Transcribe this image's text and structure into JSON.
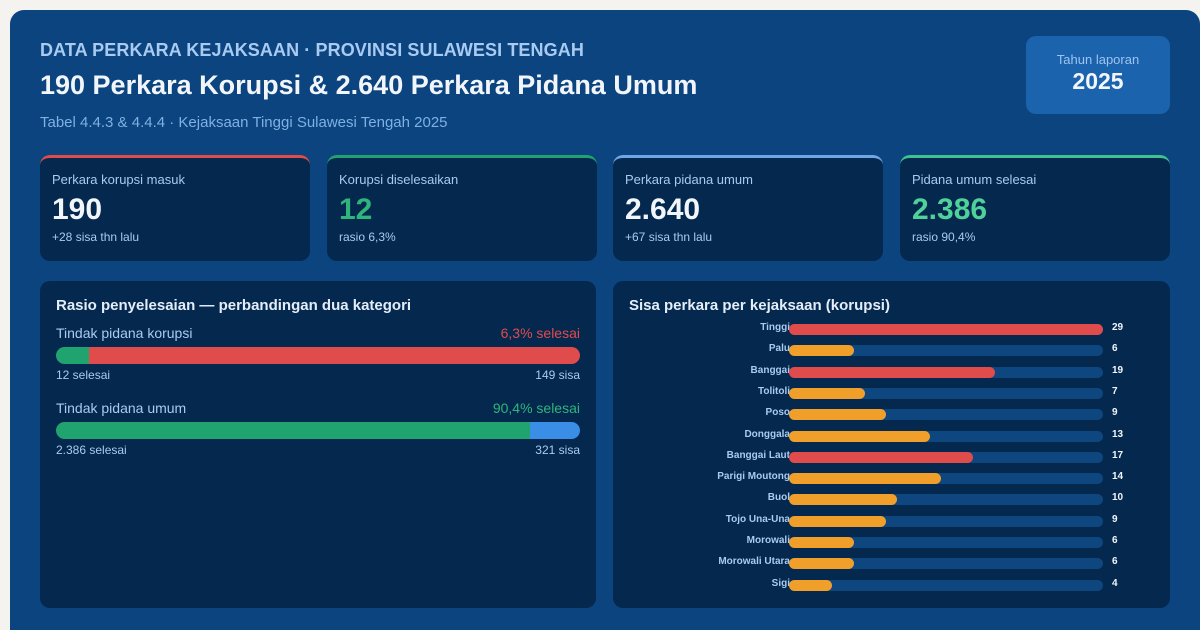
{
  "header": {
    "eyebrow": "DATA PERKARA KEJAKSAAN · PROVINSI SULAWESI TENGAH",
    "headline": "190 Perkara Korupsi & 2.640 Perkara Pidana Umum",
    "subtitle": "Tabel 4.4.3 & 4.4.4 · Kejaksaan Tinggi Sulawesi Tengah 2025",
    "year_badge": {
      "label": "Tahun laporan",
      "value": "2025"
    }
  },
  "kpis": [
    {
      "label": "Perkara korupsi masuk",
      "value": "190",
      "note": "+28 sisa thn lalu",
      "accent": "#e04b4b",
      "value_color": "#f2f6fb"
    },
    {
      "label": "Korupsi diselesaikan",
      "value": "12",
      "note": "rasio 6,3%",
      "accent": "#21a36f",
      "value_color": "#2fb57c"
    },
    {
      "label": "Perkara pidana umum",
      "value": "2.640",
      "note": "+67 sisa thn lalu",
      "accent": "#6ea6e6",
      "value_color": "#f2f6fb"
    },
    {
      "label": "Pidana umum selesai",
      "value": "2.386",
      "note": "rasio 90,4%",
      "accent": "#3fc38e",
      "value_color": "#4fd19a"
    }
  ],
  "ratio_panel": {
    "title": "Rasio penyelesaian — perbandingan dua kategori",
    "rows": [
      {
        "name": "Tindak pidana korupsi",
        "pct_label": "6,3% selesai",
        "pct_color": "#e04b4b",
        "done_label": "12 selesai",
        "left_label": "149 sisa",
        "done_pct": 6.3,
        "done_color": "#21a36f",
        "left_color": "#e04b4b"
      },
      {
        "name": "Tindak pidana umum",
        "pct_label": "90,4% selesai",
        "pct_color": "#2fb57c",
        "done_label": "2.386 selesai",
        "left_label": "321 sisa",
        "done_pct": 90.4,
        "done_color": "#21a36f",
        "left_color": "#3a8ee6"
      }
    ]
  },
  "bars_panel": {
    "title": "Sisa perkara per kejaksaan (korupsi)"
  },
  "colors": {
    "high": "#e04b4b",
    "normal": "#f0a02a",
    "track": "#0e4680"
  },
  "chart_data": [
    {
      "type": "bar",
      "orientation": "horizontal",
      "title": "Sisa perkara per kejaksaan (korupsi)",
      "categories": [
        "Tinggi",
        "Palu",
        "Banggai",
        "Tolitoli",
        "Poso",
        "Donggala",
        "Banggai Laut",
        "Parigi Moutong",
        "Buol",
        "Tojo Una-Una",
        "Morowali",
        "Morowali Utara",
        "Sigi"
      ],
      "values": [
        29,
        6,
        19,
        7,
        9,
        13,
        17,
        14,
        10,
        9,
        6,
        6,
        4
      ],
      "highlight": [
        true,
        false,
        true,
        false,
        false,
        false,
        true,
        false,
        false,
        false,
        false,
        false,
        false
      ],
      "xlim": [
        0,
        29
      ],
      "xlabel": "",
      "ylabel": "",
      "grid": false,
      "legend": null
    },
    {
      "type": "bar",
      "orientation": "horizontal-stacked",
      "title": "Rasio penyelesaian — perbandingan dua kategori",
      "categories": [
        "Tindak pidana korupsi",
        "Tindak pidana umum"
      ],
      "series": [
        {
          "name": "selesai",
          "values": [
            12,
            2386
          ]
        },
        {
          "name": "sisa",
          "values": [
            149,
            321
          ]
        }
      ],
      "annotations": [
        "6,3% selesai",
        "90,4% selesai"
      ]
    }
  ]
}
